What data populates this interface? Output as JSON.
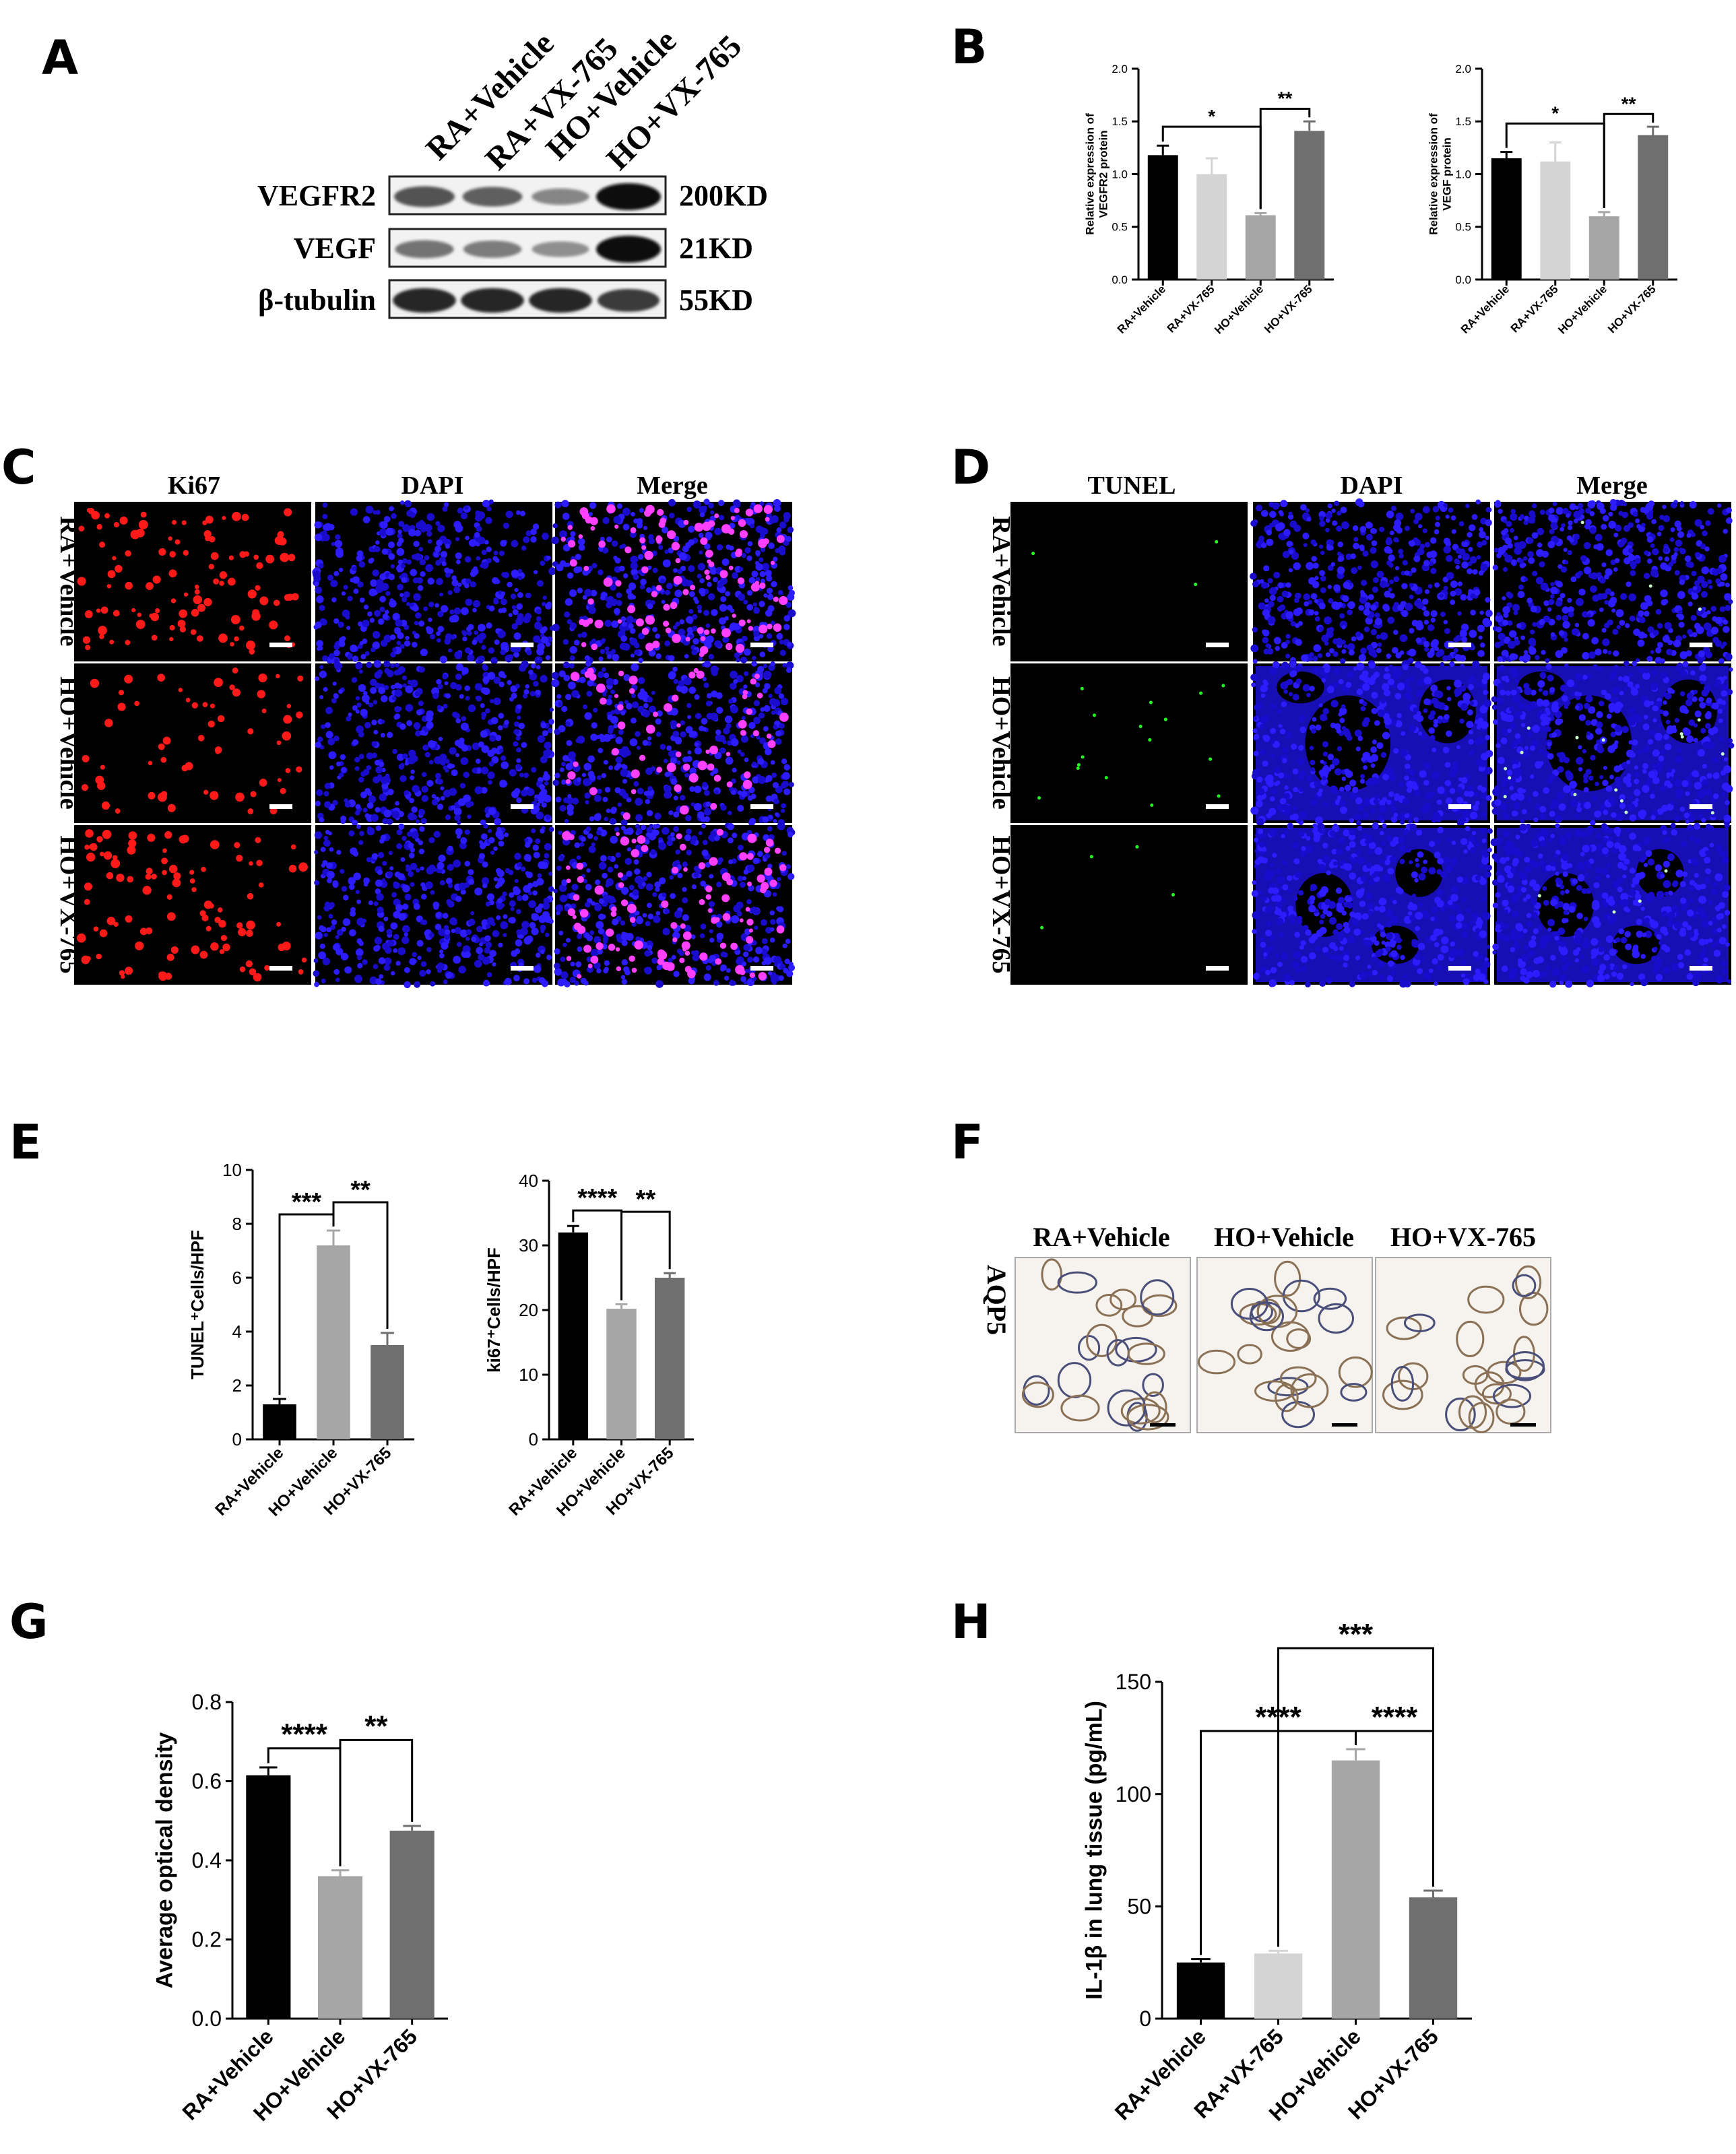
{
  "panels": {
    "A": {
      "letter": "A",
      "lanes": [
        "RA+Vehicle",
        "RA+VX-765",
        "HO+Vehicle",
        "HO+VX-765"
      ],
      "rows": [
        {
          "protein": "VEGFR2",
          "size": "200KD",
          "intensity": [
            0.62,
            0.55,
            0.35,
            1.0
          ]
        },
        {
          "protein": "VEGF",
          "size": "21KD",
          "intensity": [
            0.45,
            0.4,
            0.3,
            1.0
          ]
        },
        {
          "protein": "β-tubulin",
          "size": "55KD",
          "intensity": [
            0.85,
            0.85,
            0.85,
            0.75
          ]
        }
      ]
    },
    "B": {
      "letter": "B"
    },
    "C": {
      "letter": "C",
      "columns": [
        "Ki67",
        "DAPI",
        "Merge"
      ],
      "rows": [
        "RA+Vehicle",
        "HO+Vehicle",
        "HO+VX-765"
      ]
    },
    "D": {
      "letter": "D",
      "columns": [
        "TUNEL",
        "DAPI",
        "Merge"
      ],
      "rows": [
        "RA+Vehicle",
        "HO+Vehicle",
        "HO+VX-765"
      ]
    },
    "E": {
      "letter": "E"
    },
    "F": {
      "letter": "F",
      "columns": [
        "RA+Vehicle",
        "HO+Vehicle",
        "HO+VX-765"
      ],
      "row_label": "AQP5"
    },
    "G": {
      "letter": "G"
    },
    "H": {
      "letter": "H"
    }
  },
  "chart_data": [
    {
      "id": "B1",
      "type": "bar",
      "categories": [
        "RA+Vehicle",
        "RA+VX-765",
        "HO+Vehicle",
        "HO+VX-765"
      ],
      "values": [
        1.18,
        1.0,
        0.61,
        1.41
      ],
      "errors": [
        0.09,
        0.15,
        0.02,
        0.09
      ],
      "ylabel": [
        "Relative expression of",
        "VEGFR2 protein"
      ],
      "ylim": [
        0,
        2.0
      ],
      "yticks": [
        "0.0",
        "0.5",
        "1.0",
        "1.5",
        "2.0"
      ],
      "bar_colors": [
        "#000000",
        "#d4d4d4",
        "#a6a6a6",
        "#6f6f6f"
      ],
      "significance": [
        {
          "from": 0,
          "to": 2,
          "label": "*"
        },
        {
          "from": 2,
          "to": 3,
          "label": "**"
        }
      ]
    },
    {
      "id": "B2",
      "type": "bar",
      "categories": [
        "RA+Vehicle",
        "RA+VX-765",
        "HO+Vehicle",
        "HO+VX-765"
      ],
      "values": [
        1.15,
        1.12,
        0.6,
        1.37
      ],
      "errors": [
        0.06,
        0.18,
        0.04,
        0.08
      ],
      "ylabel": [
        "Relative expression of",
        "VEGF protein"
      ],
      "ylim": [
        0,
        2.0
      ],
      "yticks": [
        "0.0",
        "0.5",
        "1.0",
        "1.5",
        "2.0"
      ],
      "bar_colors": [
        "#000000",
        "#d4d4d4",
        "#a6a6a6",
        "#6f6f6f"
      ],
      "significance": [
        {
          "from": 0,
          "to": 2,
          "label": "*"
        },
        {
          "from": 2,
          "to": 3,
          "label": "**"
        }
      ]
    },
    {
      "id": "E1",
      "type": "bar",
      "categories": [
        "RA+Vehicle",
        "HO+Vehicle",
        "HO+VX-765"
      ],
      "values": [
        1.3,
        7.2,
        3.5
      ],
      "errors": [
        0.2,
        0.55,
        0.45
      ],
      "ylabel": [
        "TUNEL⁺Cells/HPF"
      ],
      "ylim": [
        0,
        10
      ],
      "yticks": [
        "0",
        "2",
        "4",
        "6",
        "8",
        "10"
      ],
      "bar_colors": [
        "#000000",
        "#a6a6a6",
        "#6f6f6f"
      ],
      "significance": [
        {
          "from": 0,
          "to": 1,
          "label": "***"
        },
        {
          "from": 1,
          "to": 2,
          "label": "**"
        }
      ]
    },
    {
      "id": "E2",
      "type": "bar",
      "categories": [
        "RA+Vehicle",
        "HO+Vehicle",
        "HO+VX-765"
      ],
      "values": [
        32,
        20.2,
        25
      ],
      "errors": [
        1.0,
        0.7,
        0.7
      ],
      "ylabel": [
        "ki67⁺Cells/HPF"
      ],
      "ylim": [
        0,
        40
      ],
      "yticks": [
        "0",
        "10",
        "20",
        "30",
        "40"
      ],
      "bar_colors": [
        "#000000",
        "#a6a6a6",
        "#6f6f6f"
      ],
      "significance": [
        {
          "from": 0,
          "to": 1,
          "label": "****"
        },
        {
          "from": 1,
          "to": 2,
          "label": "**"
        }
      ]
    },
    {
      "id": "G",
      "type": "bar",
      "categories": [
        "RA+Vehicle",
        "HO+Vehicle",
        "HO+VX-765"
      ],
      "values": [
        0.615,
        0.36,
        0.475
      ],
      "errors": [
        0.02,
        0.015,
        0.012
      ],
      "ylabel": [
        "Average optical density"
      ],
      "ylim": [
        0,
        0.8
      ],
      "yticks": [
        "0.0",
        "0.2",
        "0.4",
        "0.6",
        "0.8"
      ],
      "bar_colors": [
        "#000000",
        "#a6a6a6",
        "#6f6f6f"
      ],
      "significance": [
        {
          "from": 0,
          "to": 1,
          "label": "****"
        },
        {
          "from": 1,
          "to": 2,
          "label": "**"
        }
      ]
    },
    {
      "id": "H",
      "type": "bar",
      "categories": [
        "RA+Vehicle",
        "RA+VX-765",
        "HO+Vehicle",
        "HO+VX-765"
      ],
      "values": [
        25,
        29,
        115,
        54
      ],
      "errors": [
        1.5,
        1.2,
        5,
        3
      ],
      "ylabel": [
        "IL-1β in lung tissue (pg/mL)"
      ],
      "ylim": [
        0,
        150
      ],
      "yticks": [
        "0",
        "50",
        "100",
        "150"
      ],
      "bar_colors": [
        "#000000",
        "#d4d4d4",
        "#a6a6a6",
        "#6f6f6f"
      ],
      "significance": [
        {
          "from": 0,
          "to": 2,
          "label": "****"
        },
        {
          "from": 2,
          "to": 3,
          "label": "****"
        },
        {
          "from": 1,
          "to": 3,
          "label": "***"
        }
      ]
    }
  ]
}
